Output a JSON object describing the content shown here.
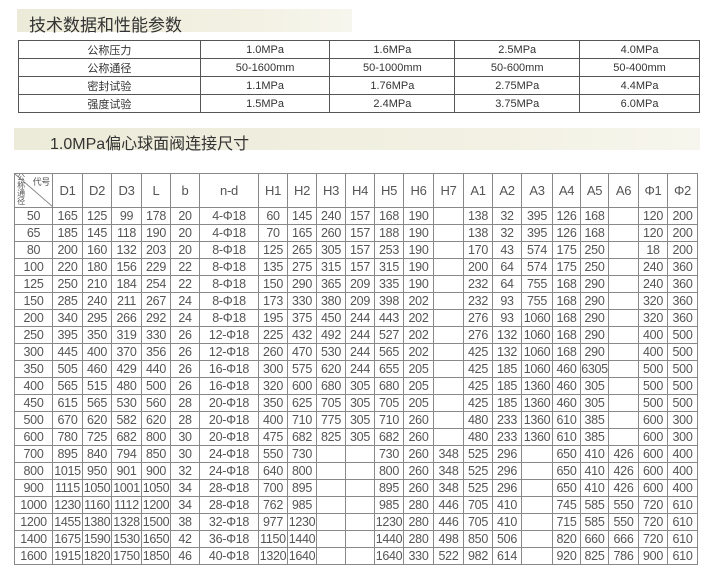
{
  "section1_title": "技术数据和性能参数",
  "spec_table": [
    [
      "公称压力",
      "1.0MPa",
      "1.6MPa",
      "2.5MPa",
      "4.0MPa"
    ],
    [
      "公称通径",
      "50-1600mm",
      "50-1000mm",
      "50-600mm",
      "50-400mm"
    ],
    [
      "密封试验",
      "1.1MPa",
      "1.76MPa",
      "2.75MPa",
      "4.4MPa"
    ],
    [
      "强度试验",
      "1.5MPa",
      "2.4MPa",
      "3.75MPa",
      "6.0MPa"
    ]
  ],
  "section2_title": "1.0MPa偏心球面阀连接尺寸",
  "dims_table": {
    "corner_top": "代号",
    "corner_bottom": "公称通径",
    "headers": [
      "D1",
      "D2",
      "D3",
      "L",
      "b",
      "n-d",
      "H1",
      "H2",
      "H3",
      "H4",
      "H5",
      "H6",
      "H7",
      "A1",
      "A2",
      "A3",
      "A4",
      "A5",
      "A6",
      "Φ1",
      "Φ2"
    ],
    "rows": [
      [
        "50",
        "165",
        "125",
        "99",
        "178",
        "20",
        "4-Φ18",
        "60",
        "145",
        "240",
        "157",
        "168",
        "190",
        "",
        "138",
        "32",
        "395",
        "126",
        "168",
        "",
        "120",
        "200"
      ],
      [
        "65",
        "185",
        "145",
        "118",
        "190",
        "20",
        "4-Φ18",
        "70",
        "165",
        "260",
        "157",
        "188",
        "190",
        "",
        "138",
        "32",
        "395",
        "126",
        "168",
        "",
        "120",
        "200"
      ],
      [
        "80",
        "200",
        "160",
        "132",
        "203",
        "20",
        "8-Φ18",
        "125",
        "265",
        "305",
        "157",
        "253",
        "190",
        "",
        "170",
        "43",
        "574",
        "175",
        "250",
        "",
        "18",
        "200"
      ],
      [
        "100",
        "220",
        "180",
        "156",
        "229",
        "22",
        "8-Φ18",
        "135",
        "275",
        "315",
        "157",
        "315",
        "190",
        "",
        "200",
        "64",
        "574",
        "175",
        "250",
        "",
        "240",
        "360"
      ],
      [
        "125",
        "250",
        "210",
        "184",
        "254",
        "22",
        "8-Φ18",
        "150",
        "290",
        "365",
        "209",
        "335",
        "190",
        "",
        "232",
        "64",
        "755",
        "168",
        "290",
        "",
        "240",
        "360"
      ],
      [
        "150",
        "285",
        "240",
        "211",
        "267",
        "24",
        "8-Φ18",
        "173",
        "330",
        "380",
        "209",
        "398",
        "202",
        "",
        "232",
        "93",
        "755",
        "168",
        "290",
        "",
        "320",
        "360"
      ],
      [
        "200",
        "340",
        "295",
        "266",
        "292",
        "24",
        "8-Φ18",
        "195",
        "375",
        "450",
        "244",
        "443",
        "202",
        "",
        "276",
        "93",
        "1060",
        "168",
        "290",
        "",
        "320",
        "360"
      ],
      [
        "250",
        "395",
        "350",
        "319",
        "330",
        "26",
        "12-Φ18",
        "225",
        "432",
        "492",
        "244",
        "527",
        "202",
        "",
        "276",
        "132",
        "1060",
        "168",
        "290",
        "",
        "400",
        "500"
      ],
      [
        "300",
        "445",
        "400",
        "370",
        "356",
        "26",
        "12-Φ18",
        "260",
        "470",
        "530",
        "244",
        "565",
        "202",
        "",
        "425",
        "132",
        "1060",
        "168",
        "290",
        "",
        "400",
        "500"
      ],
      [
        "350",
        "505",
        "460",
        "429",
        "440",
        "26",
        "16-Φ18",
        "300",
        "575",
        "620",
        "244",
        "655",
        "205",
        "",
        "425",
        "185",
        "1060",
        "460",
        "6305",
        "",
        "500",
        "500"
      ],
      [
        "400",
        "565",
        "515",
        "480",
        "500",
        "26",
        "16-Φ18",
        "320",
        "600",
        "680",
        "305",
        "680",
        "205",
        "",
        "425",
        "185",
        "1360",
        "460",
        "305",
        "",
        "500",
        "500"
      ],
      [
        "450",
        "615",
        "565",
        "530",
        "560",
        "28",
        "20-Φ18",
        "350",
        "625",
        "705",
        "305",
        "705",
        "205",
        "",
        "425",
        "185",
        "1360",
        "460",
        "305",
        "",
        "500",
        "500"
      ],
      [
        "500",
        "670",
        "620",
        "582",
        "620",
        "28",
        "20-Φ18",
        "400",
        "710",
        "775",
        "305",
        "710",
        "260",
        "",
        "480",
        "233",
        "1360",
        "610",
        "385",
        "",
        "600",
        "300"
      ],
      [
        "600",
        "780",
        "725",
        "682",
        "800",
        "30",
        "20-Φ18",
        "475",
        "682",
        "825",
        "305",
        "682",
        "260",
        "",
        "480",
        "233",
        "1360",
        "610",
        "385",
        "",
        "600",
        "300"
      ],
      [
        "700",
        "895",
        "840",
        "794",
        "850",
        "30",
        "24-Φ18",
        "550",
        "730",
        "",
        "",
        "730",
        "260",
        "348",
        "525",
        "296",
        "",
        "650",
        "410",
        "426",
        "600",
        "400"
      ],
      [
        "800",
        "1015",
        "950",
        "901",
        "900",
        "32",
        "24-Φ18",
        "640",
        "800",
        "",
        "",
        "800",
        "260",
        "348",
        "525",
        "296",
        "",
        "650",
        "410",
        "426",
        "600",
        "400"
      ],
      [
        "900",
        "1115",
        "1050",
        "1001",
        "1050",
        "34",
        "28-Φ18",
        "700",
        "895",
        "",
        "",
        "895",
        "260",
        "348",
        "525",
        "296",
        "",
        "650",
        "410",
        "426",
        "600",
        "400"
      ],
      [
        "1000",
        "1230",
        "1160",
        "1112",
        "1200",
        "34",
        "28-Φ18",
        "762",
        "985",
        "",
        "",
        "985",
        "280",
        "446",
        "705",
        "410",
        "",
        "745",
        "585",
        "550",
        "720",
        "610"
      ],
      [
        "1200",
        "1455",
        "1380",
        "1328",
        "1500",
        "38",
        "32-Φ18",
        "977",
        "1230",
        "",
        "",
        "1230",
        "280",
        "446",
        "705",
        "410",
        "",
        "715",
        "585",
        "550",
        "720",
        "610"
      ],
      [
        "1400",
        "1675",
        "1590",
        "1530",
        "1650",
        "42",
        "36-Φ18",
        "1150",
        "1440",
        "",
        "",
        "1440",
        "280",
        "498",
        "850",
        "506",
        "",
        "820",
        "660",
        "666",
        "720",
        "610"
      ],
      [
        "1600",
        "1915",
        "1820",
        "1750",
        "1850",
        "46",
        "40-Φ18",
        "1320",
        "1640",
        "",
        "",
        "1640",
        "330",
        "522",
        "982",
        "614",
        "",
        "920",
        "825",
        "786",
        "900",
        "610"
      ]
    ]
  }
}
